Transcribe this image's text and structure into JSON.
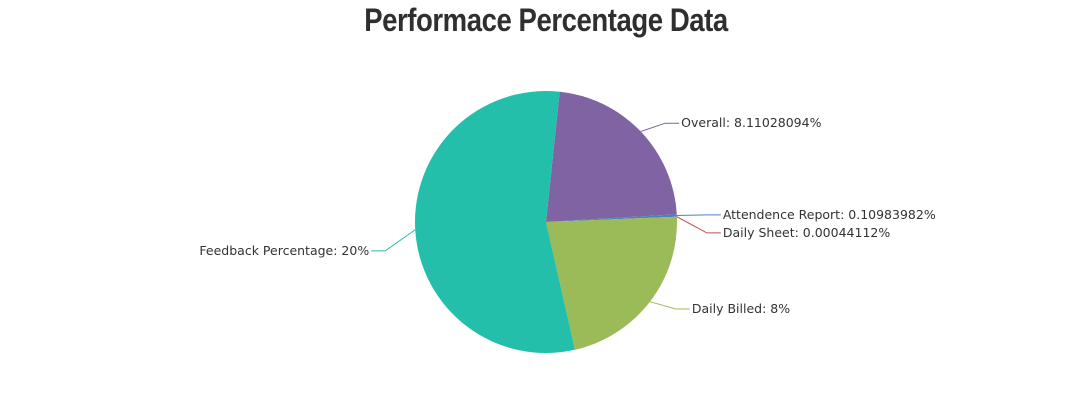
{
  "chart_data": {
    "type": "pie",
    "title": "Performace Percentage Data",
    "slices": [
      {
        "label": "Overall",
        "value": 8.11028094,
        "display": "Overall: 8.11028094%",
        "color": "#7f63a2"
      },
      {
        "label": "Attendence Report",
        "value": 0.10983982,
        "display": "Attendence Report: 0.10983982%",
        "color": "#4f81bc"
      },
      {
        "label": "Daily Sheet",
        "value": 0.00044112,
        "display": "Daily Sheet: 0.00044112%",
        "color": "#c0504e"
      },
      {
        "label": "Daily Billed",
        "value": 8,
        "display": "Daily Billed: 8%",
        "color": "#9bbb58"
      },
      {
        "label": "Feedback Percentage",
        "value": 20,
        "display": "Feedback Percentage: 20%",
        "color": "#23bfaa"
      }
    ]
  }
}
